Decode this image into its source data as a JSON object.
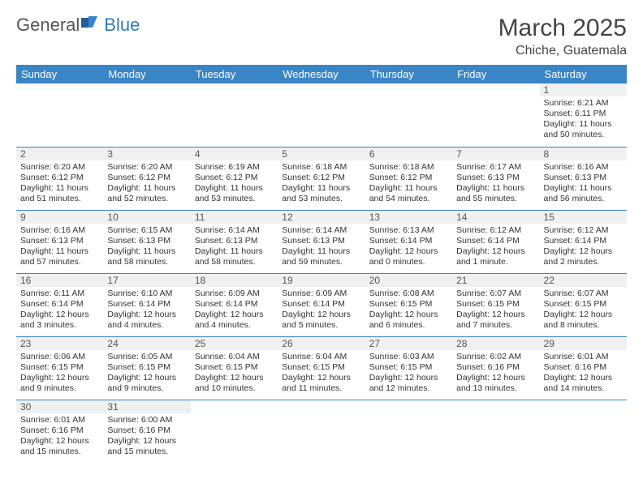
{
  "logo": {
    "text1": "General",
    "text2": "Blue"
  },
  "title": "March 2025",
  "location": "Chiche, Guatemala",
  "colors": {
    "header_bg": "#3a85c6",
    "header_fg": "#ffffff",
    "accent": "#2f7bbf",
    "daynum_bg": "#f0f0f0",
    "rule": "#3a85c6"
  },
  "weekdays": [
    "Sunday",
    "Monday",
    "Tuesday",
    "Wednesday",
    "Thursday",
    "Friday",
    "Saturday"
  ],
  "weeks": [
    [
      null,
      null,
      null,
      null,
      null,
      null,
      {
        "n": "1",
        "sr": "Sunrise: 6:21 AM",
        "ss": "Sunset: 6:11 PM",
        "dl": "Daylight: 11 hours and 50 minutes."
      }
    ],
    [
      {
        "n": "2",
        "sr": "Sunrise: 6:20 AM",
        "ss": "Sunset: 6:12 PM",
        "dl": "Daylight: 11 hours and 51 minutes."
      },
      {
        "n": "3",
        "sr": "Sunrise: 6:20 AM",
        "ss": "Sunset: 6:12 PM",
        "dl": "Daylight: 11 hours and 52 minutes."
      },
      {
        "n": "4",
        "sr": "Sunrise: 6:19 AM",
        "ss": "Sunset: 6:12 PM",
        "dl": "Daylight: 11 hours and 53 minutes."
      },
      {
        "n": "5",
        "sr": "Sunrise: 6:18 AM",
        "ss": "Sunset: 6:12 PM",
        "dl": "Daylight: 11 hours and 53 minutes."
      },
      {
        "n": "6",
        "sr": "Sunrise: 6:18 AM",
        "ss": "Sunset: 6:12 PM",
        "dl": "Daylight: 11 hours and 54 minutes."
      },
      {
        "n": "7",
        "sr": "Sunrise: 6:17 AM",
        "ss": "Sunset: 6:13 PM",
        "dl": "Daylight: 11 hours and 55 minutes."
      },
      {
        "n": "8",
        "sr": "Sunrise: 6:16 AM",
        "ss": "Sunset: 6:13 PM",
        "dl": "Daylight: 11 hours and 56 minutes."
      }
    ],
    [
      {
        "n": "9",
        "sr": "Sunrise: 6:16 AM",
        "ss": "Sunset: 6:13 PM",
        "dl": "Daylight: 11 hours and 57 minutes."
      },
      {
        "n": "10",
        "sr": "Sunrise: 6:15 AM",
        "ss": "Sunset: 6:13 PM",
        "dl": "Daylight: 11 hours and 58 minutes."
      },
      {
        "n": "11",
        "sr": "Sunrise: 6:14 AM",
        "ss": "Sunset: 6:13 PM",
        "dl": "Daylight: 11 hours and 58 minutes."
      },
      {
        "n": "12",
        "sr": "Sunrise: 6:14 AM",
        "ss": "Sunset: 6:13 PM",
        "dl": "Daylight: 11 hours and 59 minutes."
      },
      {
        "n": "13",
        "sr": "Sunrise: 6:13 AM",
        "ss": "Sunset: 6:14 PM",
        "dl": "Daylight: 12 hours and 0 minutes."
      },
      {
        "n": "14",
        "sr": "Sunrise: 6:12 AM",
        "ss": "Sunset: 6:14 PM",
        "dl": "Daylight: 12 hours and 1 minute."
      },
      {
        "n": "15",
        "sr": "Sunrise: 6:12 AM",
        "ss": "Sunset: 6:14 PM",
        "dl": "Daylight: 12 hours and 2 minutes."
      }
    ],
    [
      {
        "n": "16",
        "sr": "Sunrise: 6:11 AM",
        "ss": "Sunset: 6:14 PM",
        "dl": "Daylight: 12 hours and 3 minutes."
      },
      {
        "n": "17",
        "sr": "Sunrise: 6:10 AM",
        "ss": "Sunset: 6:14 PM",
        "dl": "Daylight: 12 hours and 4 minutes."
      },
      {
        "n": "18",
        "sr": "Sunrise: 6:09 AM",
        "ss": "Sunset: 6:14 PM",
        "dl": "Daylight: 12 hours and 4 minutes."
      },
      {
        "n": "19",
        "sr": "Sunrise: 6:09 AM",
        "ss": "Sunset: 6:14 PM",
        "dl": "Daylight: 12 hours and 5 minutes."
      },
      {
        "n": "20",
        "sr": "Sunrise: 6:08 AM",
        "ss": "Sunset: 6:15 PM",
        "dl": "Daylight: 12 hours and 6 minutes."
      },
      {
        "n": "21",
        "sr": "Sunrise: 6:07 AM",
        "ss": "Sunset: 6:15 PM",
        "dl": "Daylight: 12 hours and 7 minutes."
      },
      {
        "n": "22",
        "sr": "Sunrise: 6:07 AM",
        "ss": "Sunset: 6:15 PM",
        "dl": "Daylight: 12 hours and 8 minutes."
      }
    ],
    [
      {
        "n": "23",
        "sr": "Sunrise: 6:06 AM",
        "ss": "Sunset: 6:15 PM",
        "dl": "Daylight: 12 hours and 9 minutes."
      },
      {
        "n": "24",
        "sr": "Sunrise: 6:05 AM",
        "ss": "Sunset: 6:15 PM",
        "dl": "Daylight: 12 hours and 9 minutes."
      },
      {
        "n": "25",
        "sr": "Sunrise: 6:04 AM",
        "ss": "Sunset: 6:15 PM",
        "dl": "Daylight: 12 hours and 10 minutes."
      },
      {
        "n": "26",
        "sr": "Sunrise: 6:04 AM",
        "ss": "Sunset: 6:15 PM",
        "dl": "Daylight: 12 hours and 11 minutes."
      },
      {
        "n": "27",
        "sr": "Sunrise: 6:03 AM",
        "ss": "Sunset: 6:15 PM",
        "dl": "Daylight: 12 hours and 12 minutes."
      },
      {
        "n": "28",
        "sr": "Sunrise: 6:02 AM",
        "ss": "Sunset: 6:16 PM",
        "dl": "Daylight: 12 hours and 13 minutes."
      },
      {
        "n": "29",
        "sr": "Sunrise: 6:01 AM",
        "ss": "Sunset: 6:16 PM",
        "dl": "Daylight: 12 hours and 14 minutes."
      }
    ],
    [
      {
        "n": "30",
        "sr": "Sunrise: 6:01 AM",
        "ss": "Sunset: 6:16 PM",
        "dl": "Daylight: 12 hours and 15 minutes."
      },
      {
        "n": "31",
        "sr": "Sunrise: 6:00 AM",
        "ss": "Sunset: 6:16 PM",
        "dl": "Daylight: 12 hours and 15 minutes."
      },
      null,
      null,
      null,
      null,
      null
    ]
  ]
}
